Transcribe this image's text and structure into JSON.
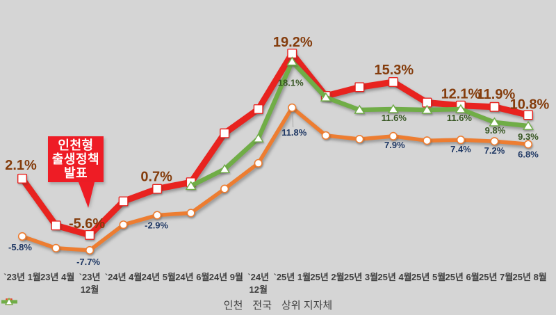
{
  "colors": {
    "background": "#d5d5d5",
    "incheon_line": "#e8231f",
    "nationwide_line": "#ed7d31",
    "top_districts_line": "#70ad47",
    "incheon_label": "#843c0c",
    "nationwide_label": "#1f3864",
    "top_districts_label": "#375623",
    "axis_text": "#3f3f3f",
    "legend_text": "#3f3f3f",
    "callout_bg": "#ee1c25",
    "callout_text": "#ffffff"
  },
  "chart_data": {
    "type": "line",
    "unit": "%",
    "grid": "off",
    "legend_position": "bottom",
    "ylim": [
      -10,
      21
    ],
    "categories": [
      "`23년 1월",
      "`23년 4월",
      "`23년 12월",
      "`24년 4월",
      "`24년 5월",
      "`24년 6월",
      "`24년 9월",
      "`24년 12월",
      "`25년 1월",
      "`25년 2월",
      "`25년 3월",
      "`25년 4월",
      "`25년 5월",
      "`25년 6월",
      "`25년 7월",
      "`25년 8월"
    ],
    "series": [
      {
        "name": "인천",
        "key": "incheon",
        "marker": "square",
        "color_key": "incheon_line",
        "label_color_key": "incheon_label",
        "values": [
          2.1,
          -4.3,
          -5.6,
          -1.0,
          0.7,
          1.6,
          8.3,
          11.6,
          19.2,
          13.4,
          14.6,
          15.3,
          12.5,
          12.1,
          11.9,
          10.8
        ],
        "point_labels": {
          "0": "2.1%",
          "2": "-5.6%",
          "4": "0.7%",
          "8": "19.2%",
          "11": "15.3%",
          "13": "12.1%",
          "14": "11.9%",
          "15": "10.8%"
        }
      },
      {
        "name": "전국",
        "key": "nationwide",
        "marker": "circle",
        "color_key": "nationwide_line",
        "label_color_key": "nationwide_label",
        "values": [
          -5.8,
          -7.4,
          -7.7,
          -4.2,
          -2.9,
          -2.6,
          0.7,
          4.2,
          11.8,
          8.0,
          7.5,
          7.9,
          7.3,
          7.4,
          7.2,
          6.8
        ],
        "point_labels": {
          "0": "-5.8%",
          "2": "-7.7%",
          "4": "-2.9%",
          "8": "11.8%",
          "11": "7.9%",
          "13": "7.4%",
          "14": "7.2%",
          "15": "6.8%"
        }
      },
      {
        "name": "상위 지자체",
        "key": "top-districts",
        "marker": "triangle",
        "color_key": "top_districts_line",
        "label_color_key": "top_districts_label",
        "values": [
          null,
          null,
          null,
          null,
          null,
          1.1,
          3.4,
          7.6,
          18.1,
          13.2,
          11.5,
          11.6,
          11.5,
          11.6,
          9.8,
          9.3
        ],
        "point_labels": {
          "8": "18.1%",
          "11": "11.6%",
          "13": "11.6%",
          "14": "9.8%",
          "15": "9.3%"
        }
      }
    ],
    "annotation": {
      "lines": [
        "인천형",
        "출생정책",
        "발표"
      ],
      "target_category": "`23년 12월",
      "target_series": "인천"
    }
  }
}
